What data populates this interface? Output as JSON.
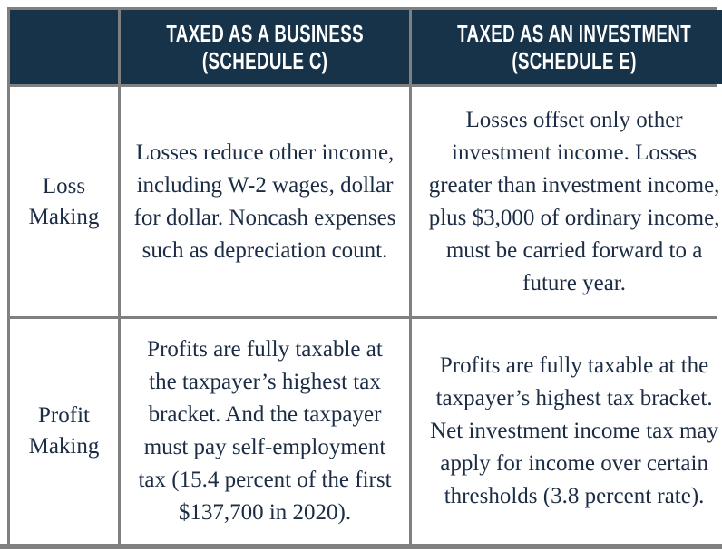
{
  "theme": {
    "header_background": "#17334A",
    "header_text_color": "#ffffff",
    "border_color": "#808080",
    "body_text_color": "#1B2C44",
    "page_background": "#ffffff"
  },
  "table": {
    "header": {
      "corner_label": "",
      "business_line1": "TAXED AS A BUSINESS",
      "business_line2": "(SCHEDULE C)",
      "investment_line1": "TAXED AS AN INVESTMENT",
      "investment_line2": "(SCHEDULE E)"
    },
    "rows": [
      {
        "label": "Loss Making",
        "business": "Losses reduce other income, including W-2 wages, dollar for dollar. Noncash expenses such as depreciation count.",
        "investment": "Losses offset only other investment income. Losses greater than investment income, plus $3,000 of ordinary income, must be carried forward to a future year."
      },
      {
        "label": "Profit Making",
        "business": "Profits are fully taxable at the taxpayer’s highest tax bracket. And the taxpayer must pay self-employment tax (15.4 percent of the first $137,700 in 2020).",
        "investment": "Profits are fully taxable at the taxpayer’s highest tax bracket. Net investment income tax may apply for income over certain thresholds (3.8 percent rate)."
      }
    ]
  }
}
